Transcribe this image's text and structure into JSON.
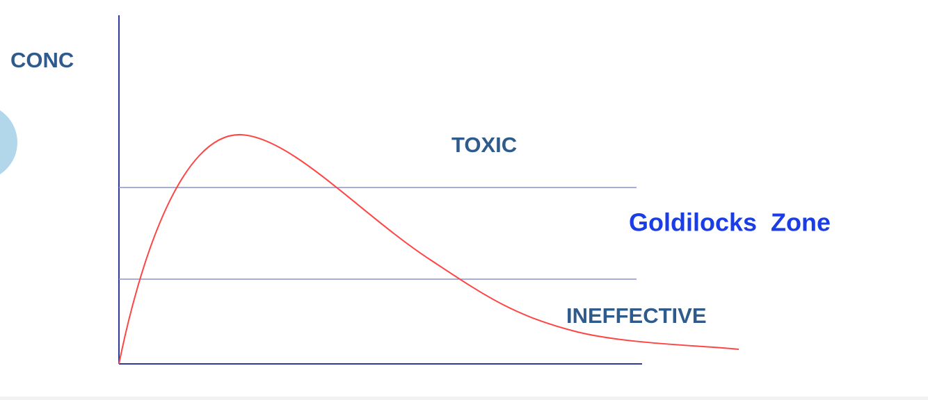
{
  "labels": {
    "y_axis": "CONC",
    "toxic": "TOXIC",
    "goldilocks": "Goldilocks  Zone",
    "ineffective": "INEFFECTIVE"
  }
}
